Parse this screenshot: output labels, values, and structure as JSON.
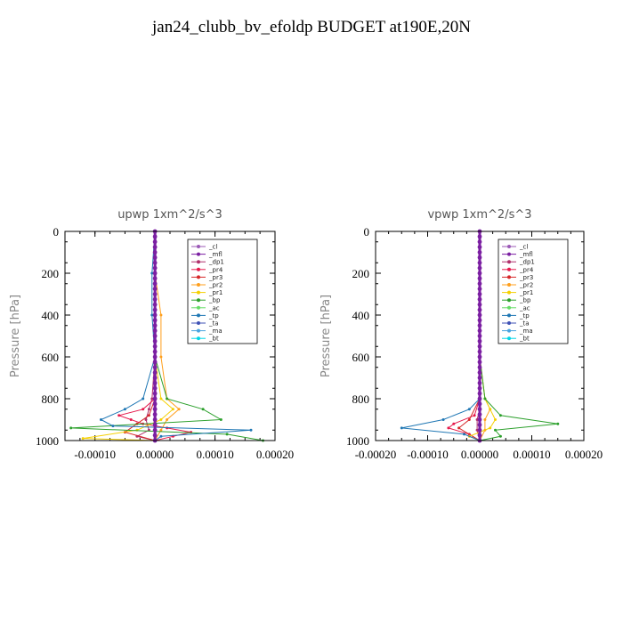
{
  "figure_title": "jan24_clubb_bv_efoldp  BUDGET at190E,20N",
  "chart_data": [
    {
      "type": "line",
      "title": "upwp   1xm^2/s^3",
      "ylabel": "Pressure [hPa]",
      "ylim": [
        1000,
        0
      ],
      "xlim": [
        -0.00015,
        0.0002
      ],
      "xticks": [
        "-0.00010",
        "0.00000",
        "0.00010",
        "0.00020"
      ],
      "xtick_values": [
        -0.0001,
        0,
        0.0001,
        0.0002
      ],
      "yticks": [
        "0",
        "200",
        "400",
        "600",
        "800",
        "1000"
      ],
      "ytick_values": [
        0,
        200,
        400,
        600,
        800,
        1000
      ],
      "legend_position": "top-right",
      "series": [
        {
          "name": "_cl",
          "color": "#9b59b6",
          "p": [
            0,
            200,
            400,
            600,
            800,
            900,
            950,
            1000
          ],
          "x": [
            0,
            0,
            0,
            0,
            0,
            0,
            0,
            0
          ]
        },
        {
          "name": "_mfl",
          "color": "#7b1fa2",
          "p": [
            0,
            200,
            400,
            600,
            800,
            900,
            950,
            1000
          ],
          "x": [
            0,
            0,
            0,
            0,
            0,
            0,
            0,
            0
          ]
        },
        {
          "name": "_dp1",
          "color": "#b0306b",
          "p": [
            0,
            200,
            400,
            600,
            800,
            850,
            900,
            950,
            980,
            1000
          ],
          "x": [
            0,
            0,
            0,
            0,
            -5e-06,
            -1e-05,
            -1.5e-05,
            -1e-05,
            -3e-05,
            0
          ]
        },
        {
          "name": "_pr4",
          "color": "#e6194b",
          "p": [
            0,
            200,
            400,
            600,
            800,
            850,
            880,
            900,
            920,
            940,
            960,
            980,
            1000
          ],
          "x": [
            0,
            0,
            0,
            0,
            0,
            -2e-05,
            -6e-05,
            -4e-05,
            -2e-05,
            2e-05,
            6e-05,
            3e-05,
            0
          ]
        },
        {
          "name": "_pr3",
          "color": "#d62728",
          "p": [
            0,
            200,
            400,
            600,
            800,
            880,
            920,
            960,
            1000
          ],
          "x": [
            0,
            0,
            0,
            0,
            0,
            -1e-05,
            -3e-05,
            -5e-05,
            0
          ]
        },
        {
          "name": "_pr2",
          "color": "#ff9f1c",
          "p": [
            0,
            200,
            400,
            600,
            800,
            850,
            900,
            950,
            1000
          ],
          "x": [
            0,
            0,
            1e-05,
            1e-05,
            2e-05,
            4e-05,
            2e-05,
            1e-05,
            0
          ]
        },
        {
          "name": "_pr1",
          "color": "#f5d000",
          "p": [
            0,
            200,
            400,
            600,
            800,
            850,
            900,
            950,
            990,
            1000
          ],
          "x": [
            0,
            0,
            0,
            0,
            1e-05,
            3e-05,
            1e-05,
            -3e-05,
            -0.00012,
            0
          ]
        },
        {
          "name": "_bp",
          "color": "#2ca02c",
          "p": [
            0,
            200,
            400,
            600,
            800,
            850,
            900,
            940,
            970,
            1000
          ],
          "x": [
            0,
            0,
            0,
            0,
            2e-05,
            8e-05,
            0.00011,
            -0.00014,
            0.00012,
            0.00018
          ]
        },
        {
          "name": "_ac",
          "color": "#66dd66",
          "p": [
            0,
            200,
            400,
            600,
            800,
            900,
            1000
          ],
          "x": [
            0,
            0,
            0,
            0,
            0,
            0,
            0
          ]
        },
        {
          "name": "_tp",
          "color": "#1f77b4",
          "p": [
            0,
            200,
            400,
            600,
            800,
            850,
            900,
            930,
            950,
            980,
            1000
          ],
          "x": [
            0,
            -5e-06,
            -5e-06,
            0,
            -2e-05,
            -5e-05,
            -9e-05,
            -7e-05,
            0.00016,
            1e-05,
            0
          ]
        },
        {
          "name": "_ta",
          "color": "#3f51b5",
          "p": [
            0,
            200,
            400,
            600,
            800,
            900,
            1000
          ],
          "x": [
            0,
            0,
            0,
            0,
            0,
            0,
            0
          ]
        },
        {
          "name": "_ma",
          "color": "#4aa3df",
          "p": [
            0,
            200,
            400,
            600,
            800,
            900,
            1000
          ],
          "x": [
            0,
            0,
            0,
            0,
            0,
            0,
            0
          ]
        },
        {
          "name": "_bt",
          "color": "#00d5e6",
          "p": [
            0,
            200,
            400,
            600,
            800,
            900,
            1000
          ],
          "x": [
            0,
            0,
            0,
            0,
            0,
            0,
            0
          ]
        }
      ]
    },
    {
      "type": "line",
      "title": "vpwp   1xm^2/s^3",
      "ylabel": "Pressure [hPa]",
      "ylim": [
        1000,
        0
      ],
      "xlim": [
        -0.0002,
        0.0002
      ],
      "xticks": [
        "-0.00020",
        "-0.00010",
        "0.00000",
        "0.00010",
        "0.00020"
      ],
      "xtick_values": [
        -0.0002,
        -0.0001,
        0,
        0.0001,
        0.0002
      ],
      "yticks": [
        "0",
        "200",
        "400",
        "600",
        "800",
        "1000"
      ],
      "ytick_values": [
        0,
        200,
        400,
        600,
        800,
        1000
      ],
      "legend_position": "top-right",
      "series": [
        {
          "name": "_cl",
          "color": "#9b59b6",
          "p": [
            0,
            200,
            400,
            600,
            800,
            900,
            950,
            1000
          ],
          "x": [
            0,
            0,
            0,
            0,
            0,
            0,
            0,
            0
          ]
        },
        {
          "name": "_mfl",
          "color": "#7b1fa2",
          "p": [
            0,
            200,
            400,
            600,
            800,
            900,
            950,
            1000
          ],
          "x": [
            0,
            0,
            0,
            0,
            0,
            0,
            0,
            0
          ]
        },
        {
          "name": "_dp1",
          "color": "#b0306b",
          "p": [
            0,
            200,
            400,
            600,
            800,
            850,
            900,
            950,
            1000
          ],
          "x": [
            0,
            0,
            0,
            0,
            0,
            0,
            -5e-06,
            -5e-06,
            0
          ]
        },
        {
          "name": "_pr4",
          "color": "#e6194b",
          "p": [
            0,
            200,
            400,
            600,
            800,
            880,
            920,
            940,
            970,
            1000
          ],
          "x": [
            0,
            0,
            0,
            0,
            0,
            -1e-05,
            -5e-05,
            -6e-05,
            -2e-05,
            0
          ]
        },
        {
          "name": "_pr3",
          "color": "#d62728",
          "p": [
            0,
            200,
            400,
            600,
            800,
            900,
            940,
            1000
          ],
          "x": [
            0,
            0,
            0,
            0,
            0,
            -2e-05,
            -4e-05,
            0
          ]
        },
        {
          "name": "_pr2",
          "color": "#ff9f1c",
          "p": [
            0,
            200,
            400,
            600,
            800,
            850,
            900,
            950,
            1000
          ],
          "x": [
            0,
            0,
            0,
            0,
            1e-05,
            2e-05,
            1e-05,
            1e-05,
            0
          ]
        },
        {
          "name": "_pr1",
          "color": "#f5d000",
          "p": [
            0,
            200,
            400,
            600,
            800,
            850,
            900,
            940,
            980,
            1000
          ],
          "x": [
            0,
            0,
            0,
            0,
            1e-05,
            2e-05,
            3e-05,
            2e-05,
            -2e-05,
            0
          ]
        },
        {
          "name": "_bp",
          "color": "#2ca02c",
          "p": [
            0,
            200,
            400,
            600,
            800,
            880,
            920,
            950,
            980,
            1000
          ],
          "x": [
            0,
            0,
            0,
            0,
            1e-05,
            4e-05,
            0.00015,
            3e-05,
            4e-05,
            0
          ]
        },
        {
          "name": "_ac",
          "color": "#66dd66",
          "p": [
            0,
            200,
            400,
            600,
            800,
            900,
            1000
          ],
          "x": [
            0,
            0,
            0,
            0,
            0,
            0,
            0
          ]
        },
        {
          "name": "_tp",
          "color": "#1f77b4",
          "p": [
            0,
            200,
            400,
            600,
            800,
            850,
            900,
            940,
            970,
            1000
          ],
          "x": [
            0,
            0,
            0,
            0,
            0,
            -2e-05,
            -7e-05,
            -0.00015,
            -3e-05,
            0
          ]
        },
        {
          "name": "_ta",
          "color": "#3f51b5",
          "p": [
            0,
            200,
            400,
            600,
            800,
            900,
            1000
          ],
          "x": [
            0,
            0,
            0,
            0,
            0,
            0,
            0
          ]
        },
        {
          "name": "_ma",
          "color": "#4aa3df",
          "p": [
            0,
            200,
            400,
            600,
            800,
            900,
            1000
          ],
          "x": [
            0,
            0,
            0,
            0,
            0,
            0,
            0
          ]
        },
        {
          "name": "_bt",
          "color": "#00d5e6",
          "p": [
            0,
            200,
            400,
            600,
            800,
            900,
            1000
          ],
          "x": [
            0,
            0,
            0,
            0,
            0,
            0,
            0
          ]
        }
      ]
    }
  ]
}
